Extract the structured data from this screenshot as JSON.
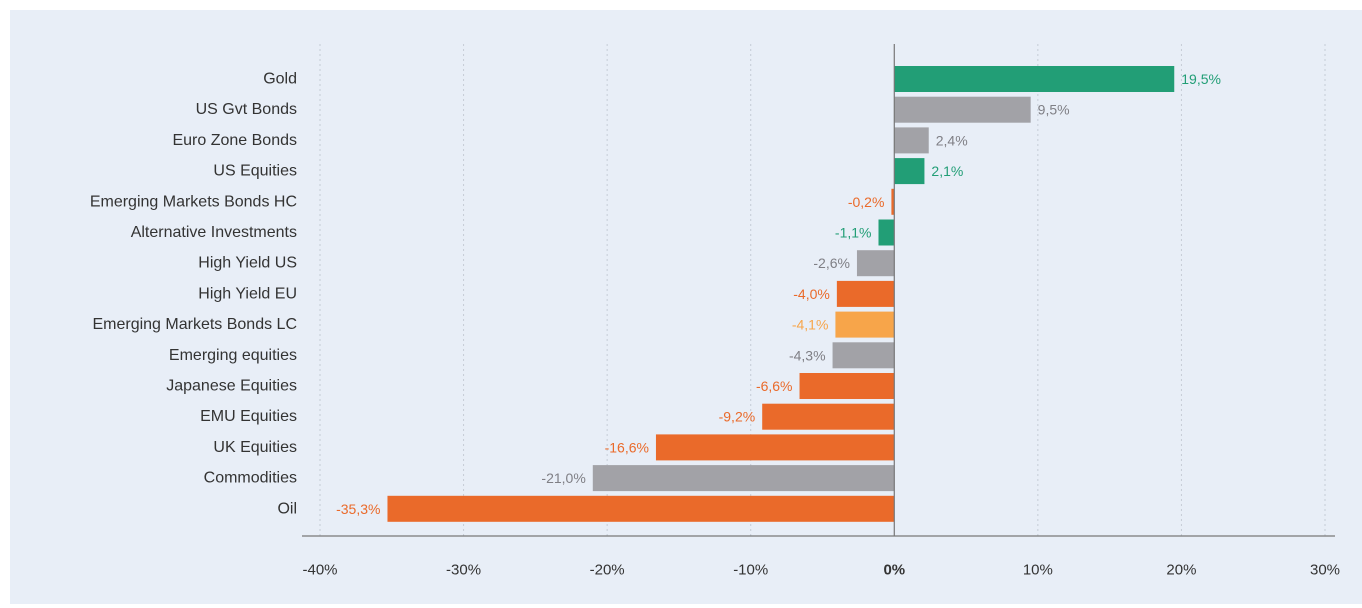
{
  "chart_data": {
    "type": "bar",
    "orientation": "horizontal",
    "categories": [
      "Gold",
      "US Gvt Bonds",
      "Euro Zone Bonds",
      "US Equities",
      "Emerging Markets Bonds HC",
      "Alternative Investments",
      "High Yield US",
      "High Yield EU",
      "Emerging Markets Bonds LC",
      "Emerging equities",
      "Japanese Equities",
      "EMU Equities",
      "UK Equities",
      "Commodities",
      "Oil"
    ],
    "values": [
      19.5,
      9.5,
      2.4,
      2.1,
      -0.2,
      -1.1,
      -2.6,
      -4.0,
      -4.1,
      -4.3,
      -6.6,
      -9.2,
      -16.6,
      -21.0,
      -35.3
    ],
    "value_labels": [
      "19,5%",
      "9,5%",
      "2,4%",
      "2,1%",
      "-0,2%",
      "-1,1%",
      "-2,6%",
      "-4,0%",
      "-4,1%",
      "-4,3%",
      "-6,6%",
      "-9,2%",
      "-16,6%",
      "-21,0%",
      "-35,3%"
    ],
    "bar_colors": [
      "#229e76",
      "#a2a2a7",
      "#a2a2a7",
      "#229e76",
      "#ea6a2a",
      "#229e76",
      "#a2a2a7",
      "#ea6a2a",
      "#f7a54a",
      "#a2a2a7",
      "#ea6a2a",
      "#ea6a2a",
      "#ea6a2a",
      "#a2a2a7",
      "#ea6a2a"
    ],
    "label_colors": [
      "#229e76",
      "#7f7f85",
      "#7f7f85",
      "#229e76",
      "#ea6a2a",
      "#229e76",
      "#7f7f85",
      "#ea6a2a",
      "#f7a54a",
      "#7f7f85",
      "#ea6a2a",
      "#ea6a2a",
      "#ea6a2a",
      "#7f7f85",
      "#ea6a2a"
    ],
    "xlim": [
      -40,
      30
    ],
    "xticks": [
      -40,
      -30,
      -20,
      -10,
      0,
      10,
      20,
      30
    ],
    "xtick_labels": [
      "-40%",
      "-30%",
      "-20%",
      "-10%",
      "0%",
      "10%",
      "20%",
      "30%"
    ],
    "grid": "vertical dotted",
    "title": "",
    "xlabel": "",
    "ylabel": "",
    "legend": "none"
  }
}
